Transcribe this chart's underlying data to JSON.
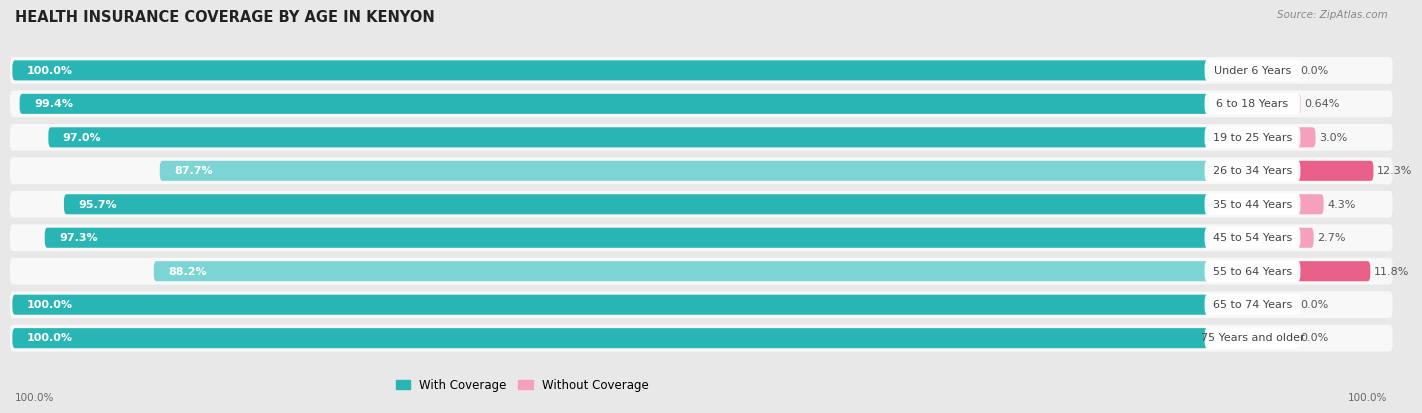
{
  "title": "HEALTH INSURANCE COVERAGE BY AGE IN KENYON",
  "source": "Source: ZipAtlas.com",
  "categories": [
    "Under 6 Years",
    "6 to 18 Years",
    "19 to 25 Years",
    "26 to 34 Years",
    "35 to 44 Years",
    "45 to 54 Years",
    "55 to 64 Years",
    "65 to 74 Years",
    "75 Years and older"
  ],
  "with_coverage": [
    100.0,
    99.4,
    97.0,
    87.7,
    95.7,
    97.3,
    88.2,
    100.0,
    100.0
  ],
  "without_coverage": [
    0.0,
    0.64,
    3.0,
    12.3,
    4.3,
    2.7,
    11.8,
    0.0,
    0.0
  ],
  "without_labels": [
    "0.0%",
    "0.64%",
    "3.0%",
    "12.3%",
    "4.3%",
    "2.7%",
    "11.8%",
    "0.0%",
    "0.0%"
  ],
  "with_labels": [
    "100.0%",
    "99.4%",
    "97.0%",
    "87.7%",
    "95.7%",
    "97.3%",
    "88.2%",
    "100.0%",
    "100.0%"
  ],
  "color_with_dark": "#2ab5b5",
  "color_with_light": "#7dd4d4",
  "color_without_light": "#f5a0bc",
  "color_without_dark": "#e8608a",
  "bg_color": "#e8e8e8",
  "bar_bg": "#f8f8f8",
  "row_bg": "#e8e8e8",
  "legend_with": "With Coverage",
  "legend_without": "Without Coverage",
  "title_fontsize": 10.5,
  "source_fontsize": 7.5,
  "bar_label_fontsize": 8,
  "category_fontsize": 8
}
